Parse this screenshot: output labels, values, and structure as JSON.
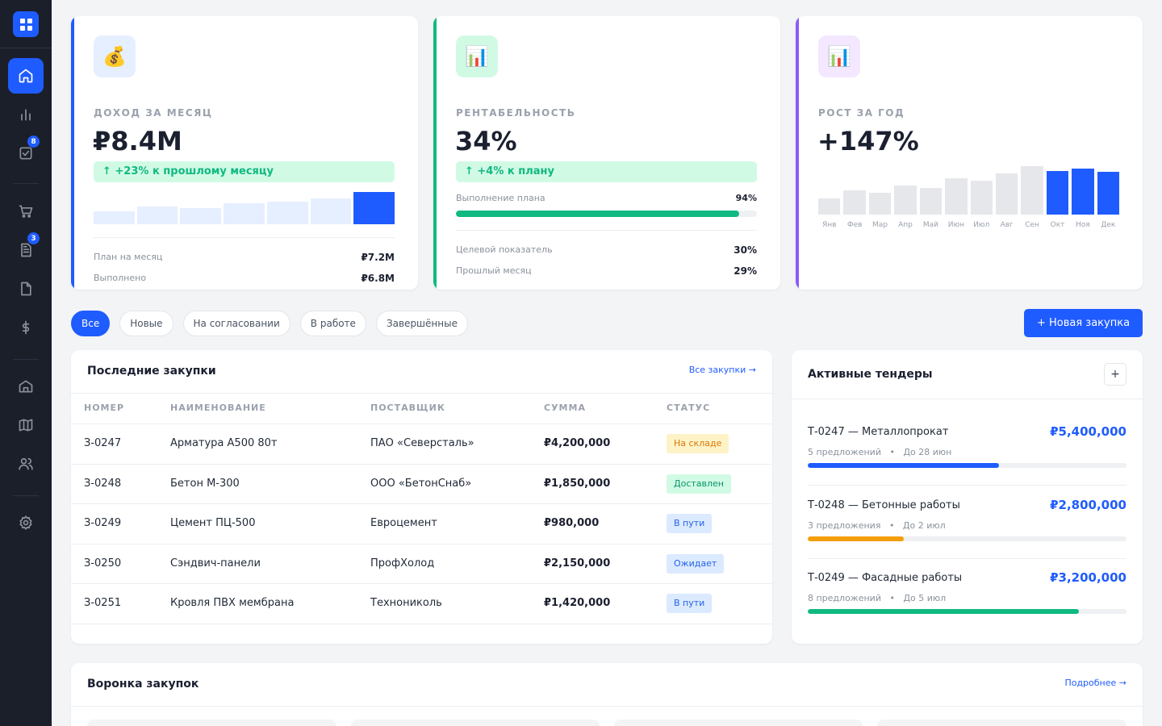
{
  "sidebar": {
    "badges": {
      "tasks": "8",
      "docs": "3"
    },
    "icons": [
      "home-icon",
      "chart-icon",
      "tasks-icon",
      "cart-icon",
      "documents-icon",
      "file-icon",
      "dollar-icon",
      "warehouse-icon",
      "map-icon",
      "users-icon",
      "settings-icon"
    ]
  },
  "kpi": {
    "income": {
      "label": "ДОХОД ЗА МЕСЯЦ",
      "value": "₽8.4M",
      "change": "↑ +23% к прошлому месяцу",
      "icon": "💰",
      "bars": [
        0.4,
        0.55,
        0.5,
        0.65,
        0.7,
        0.8,
        1.0
      ],
      "plan_label": "План на месяц",
      "plan_value": "₽7.2M",
      "done_label": "Выполнено",
      "done_value": "₽6.8M",
      "accent": "#1f5cff"
    },
    "profit": {
      "label": "РЕНТАБЕЛЬНОСТЬ",
      "value": "34%",
      "change": "↑ +4% к плану",
      "icon": "📊",
      "progress_label": "Выполнение плана",
      "progress_value": "94%",
      "progress": 0.94,
      "target_label": "Целевой показатель",
      "target_value": "30%",
      "prev_label": "Прошлый месяц",
      "prev_value": "29%",
      "accent": "#10b981"
    },
    "growth": {
      "label": "РОСТ ЗА ГОД",
      "value": "+147%",
      "icon": "📊",
      "accent": "#8b5cf6",
      "months": [
        "Янв",
        "Фев",
        "Мар",
        "Апр",
        "Май",
        "Июн",
        "Июл",
        "Авг",
        "Сен",
        "Окт",
        "Ноя",
        "Дек"
      ],
      "bars": [
        0.33,
        0.5,
        0.45,
        0.6,
        0.55,
        0.75,
        0.7,
        0.85,
        1.0,
        0.9,
        0.95,
        0.88
      ],
      "highlight_from": 9
    }
  },
  "filters": [
    "Все",
    "Новые",
    "На согласовании",
    "В работе",
    "Завершённые"
  ],
  "new_button": "+ Новая закупка",
  "purchases": {
    "title": "Последние закупки",
    "link": "Все закупки →",
    "columns": [
      "НОМЕР",
      "НАИМЕНОВАНИЕ",
      "ПОСТАВЩИК",
      "СУММА",
      "СТАТУС"
    ],
    "rows": [
      {
        "id": "З-0247",
        "name": "Арматура А500 80т",
        "supplier": "ПАО «Северсталь»",
        "sum": "₽4,200,000",
        "status": "На складе",
        "tone": "yellow"
      },
      {
        "id": "З-0248",
        "name": "Бетон М-300",
        "supplier": "ООО «БетонСнаб»",
        "sum": "₽1,850,000",
        "status": "Доставлен",
        "tone": "green"
      },
      {
        "id": "З-0249",
        "name": "Цемент ПЦ-500",
        "supplier": "Евроцемент",
        "sum": "₽980,000",
        "status": "В пути",
        "tone": "blue"
      },
      {
        "id": "З-0250",
        "name": "Сэндвич-панели",
        "supplier": "ПрофХолод",
        "sum": "₽2,150,000",
        "status": "Ожидает",
        "tone": "blue"
      },
      {
        "id": "З-0251",
        "name": "Кровля ПВХ мембрана",
        "supplier": "Технониколь",
        "sum": "₽1,420,000",
        "status": "В пути",
        "tone": "blue"
      }
    ]
  },
  "tenders": {
    "title": "Активные тендеры",
    "add": "+",
    "items": [
      {
        "name": "Т-0247 — Металлопрокат",
        "amount": "₽5,400,000",
        "offers": "5 предложений",
        "deadline": "До 28 июн",
        "progress": 0.6,
        "color": "#1f5cff"
      },
      {
        "name": "Т-0248 — Бетонные работы",
        "amount": "₽2,800,000",
        "offers": "3 предложения",
        "deadline": "До 2 июл",
        "progress": 0.3,
        "color": "#f59e0b"
      },
      {
        "name": "Т-0249 — Фасадные работы",
        "amount": "₽3,200,000",
        "offers": "8 предложений",
        "deadline": "До 5 июл",
        "progress": 0.85,
        "color": "#10b981"
      }
    ]
  },
  "funnel": {
    "title": "Воронка закупок",
    "link": "Подробнее →"
  }
}
